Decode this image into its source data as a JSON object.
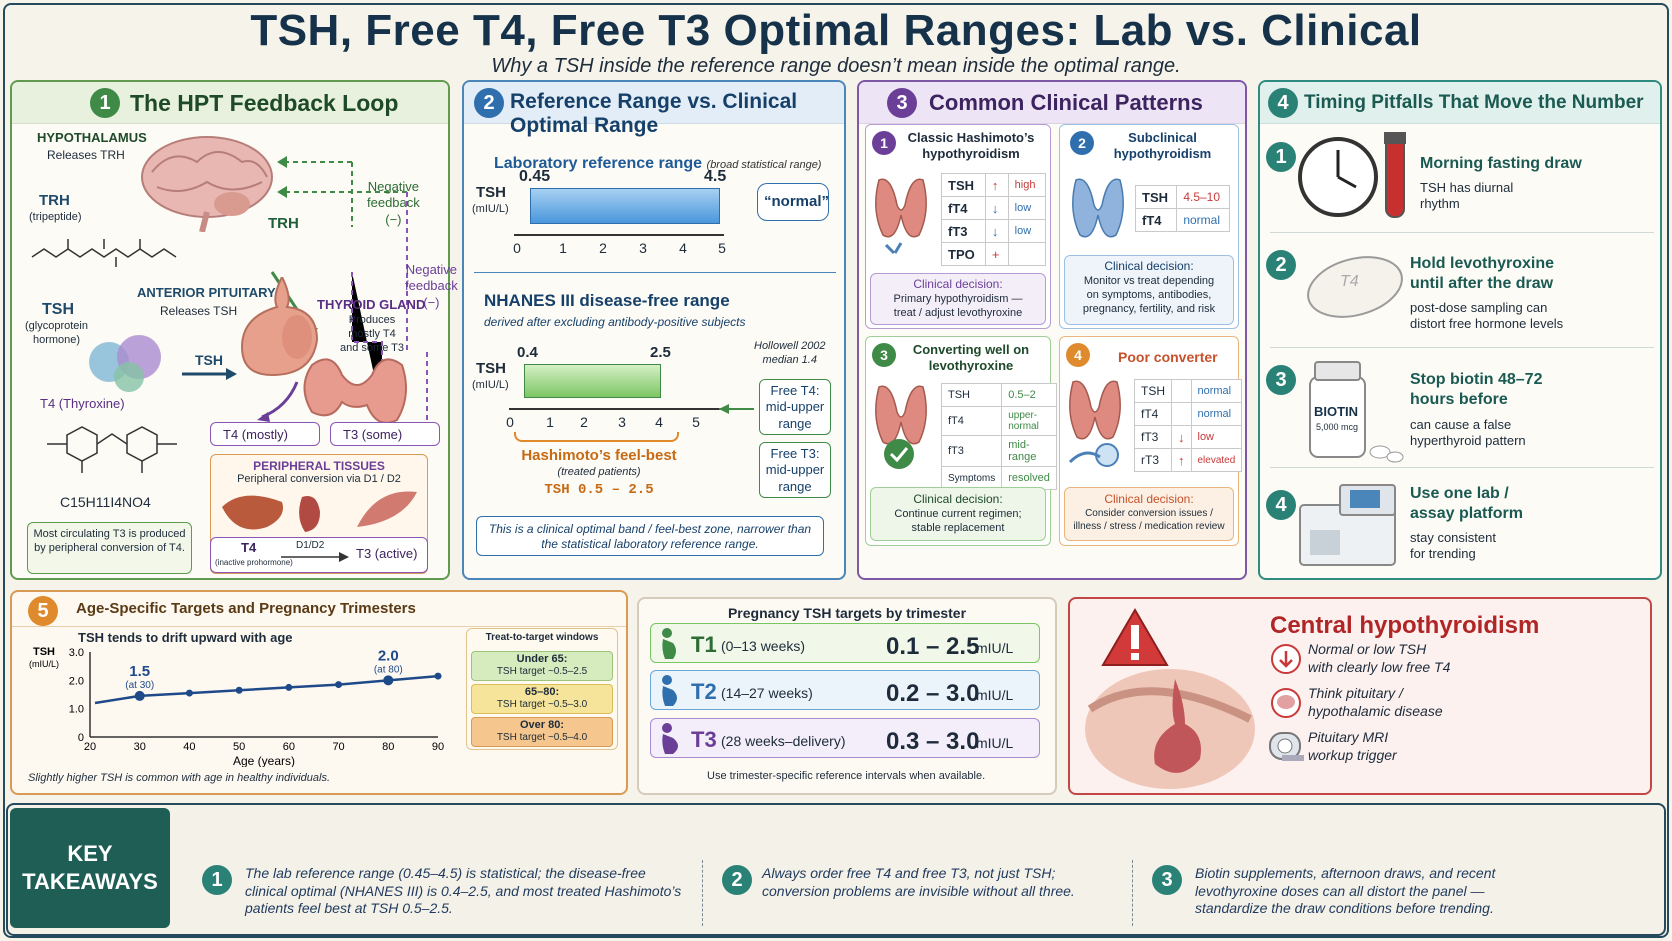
{
  "header": {
    "title": "TSH, Free T4, Free T3 Optimal Ranges: Lab vs. Clinical",
    "subtitle": "Why a TSH inside the reference range doesn’t mean inside the optimal range."
  },
  "colors": {
    "green": "#3f8a46",
    "blue": "#2f6fae",
    "purple": "#6b3f98",
    "teal": "#2a8277",
    "orange": "#e08a2e",
    "red": "#c83a3a",
    "navy": "#16324a"
  },
  "p1": {
    "num": "1",
    "title": "The HPT Feedback Loop",
    "hypothalamus": "HYPOTHALAMUS",
    "releases_trh": "Releases TRH",
    "trh": "TRH",
    "trh_sub": "(tripeptide)",
    "trh_arrow": "TRH",
    "neg_fb1": "Negative\nfeedback\n(−)",
    "neg_fb2": "Negative\nfeedback\n(−)",
    "ant_pit": "ANTERIOR PITUITARY",
    "releases_tsh": "Releases TSH",
    "tsh": "TSH",
    "tsh_sub": "(glycoprotein\nhormone)",
    "tsh_arrow": "TSH",
    "thyroid": "THYROID GLAND",
    "thyroid_note": "Produces\nmostly T4\nand some T3",
    "t4_thyroxine": "T4 (Thyroxine)",
    "formula": "C15H11I4NO4",
    "t4_mostly": "T4 (mostly)",
    "t3_some": "T3 (some)",
    "periph_title": "PERIPHERAL TISSUES",
    "periph_sub": "Peripheral conversion via D1 / D2",
    "note": "Most circulating T3 is produced by peripheral conversion of T4.",
    "conv_t4": "T4",
    "conv_t4_sub": "(inactive prohormone)",
    "conv_d": "D1/D2",
    "conv_t3": "T3 (active)"
  },
  "p2": {
    "num": "2",
    "title": "Reference Range vs. Clinical Optimal Range",
    "lab_title": "Laboratory reference range",
    "lab_sub": "(broad statistical range)",
    "tsh_label": "TSH",
    "unit": "(mIU/L)",
    "lab_low": "0.45",
    "lab_high": "4.5",
    "normal": "“normal”",
    "nhanes_title": "NHANES III disease-free range",
    "nhanes_sub": "derived after excluding antibody-positive subjects",
    "nh_low": "0.4",
    "nh_high": "2.5",
    "hollowell": "Hollowell 2002",
    "median": "median 1.4",
    "ft4_box": "Free T4:\nmid-upper\nrange",
    "ft3_box": "Free T3:\nmid-upper\nrange",
    "hashi": "Hashimoto’s feel-best",
    "hashi_sub": "(treated patients)",
    "hashi_range": "TSH 0.5 – 2.5",
    "footnote": "This is a clinical optimal band / feel-best zone, narrower than the statistical laboratory reference range.",
    "ticks": [
      "0",
      "1",
      "2",
      "3",
      "4",
      "5"
    ]
  },
  "p3": {
    "num": "3",
    "title": "Common Clinical Patterns",
    "decision_label": "Clinical decision:",
    "c1": {
      "num": "1",
      "title": "Classic Hashimoto’s\nhypothyroidism",
      "rows": [
        [
          "TSH",
          "↑",
          "high"
        ],
        [
          "fT4",
          "↓",
          "low"
        ],
        [
          "fT3",
          "↓",
          "low"
        ],
        [
          "TPO",
          "+",
          ""
        ]
      ],
      "decision": "Primary hypothyroidism —\ntreat / adjust levothyroxine"
    },
    "c2": {
      "num": "2",
      "title": "Subclinical\nhypothyroidism",
      "rows": [
        [
          "TSH",
          "4.5–10"
        ],
        [
          "fT4",
          "normal"
        ]
      ],
      "decision": "Monitor vs treat depending\non symptoms, antibodies,\npregnancy, fertility, and risk"
    },
    "c3": {
      "num": "3",
      "title": "Converting well on\nlevothyroxine",
      "rows": [
        [
          "TSH",
          "0.5–2"
        ],
        [
          "fT4",
          "upper-normal"
        ],
        [
          "fT3",
          "mid-range"
        ],
        [
          "Symptoms",
          "resolved"
        ]
      ],
      "decision": "Continue current regimen;\nstable replacement"
    },
    "c4": {
      "num": "4",
      "title": "Poor converter",
      "rows": [
        [
          "TSH",
          "",
          "normal"
        ],
        [
          "fT4",
          "",
          "normal"
        ],
        [
          "fT3",
          "↓",
          "low"
        ],
        [
          "rT3",
          "↑",
          "elevated"
        ]
      ],
      "decision": "Consider conversion issues /\nillness / stress / medication review"
    }
  },
  "p4": {
    "num": "4",
    "title": "Timing Pitfalls That Move the Number",
    "items": [
      {
        "num": "1",
        "title": "Morning fasting draw",
        "sub": "TSH has diurnal\nrhythm"
      },
      {
        "num": "2",
        "title": "Hold levothyroxine\nuntil after the draw",
        "sub": "post-dose sampling can\ndistort free hormone levels"
      },
      {
        "num": "3",
        "title": "Stop biotin 48–72\nhours before",
        "sub": "can cause a false\nhyperthyroid pattern"
      },
      {
        "num": "4",
        "title": "Use one lab /\nassay platform",
        "sub": "stay consistent\nfor trending"
      }
    ],
    "pill_label": "T4",
    "biotin_label": "BIOTIN",
    "biotin_dose": "5,000 mcg"
  },
  "p5": {
    "num": "5",
    "title": "Age-Specific Targets and Pregnancy Trimesters",
    "chart_title": "TSH tends to drift upward with age",
    "footnote": "Slightly higher TSH is common with age in healthy individuals.",
    "windows_title": "Treat-to-target windows",
    "windows": [
      {
        "label": "Under 65:",
        "range": "TSH target ~0.5–2.5"
      },
      {
        "label": "65–80:",
        "range": "TSH target ~0.5–3.0"
      },
      {
        "label": "Over 80:",
        "range": "TSH target ~0.5–4.0"
      }
    ],
    "callouts": [
      {
        "value": "1.5",
        "note": "(at 30)"
      },
      {
        "value": "2.0",
        "note": "(at 80)"
      }
    ]
  },
  "chart_data": {
    "type": "line",
    "title": "TSH tends to drift upward with age",
    "xlabel": "Age (years)",
    "ylabel": "TSH",
    "yunit": "(mIU/L)",
    "x": [
      21,
      30,
      40,
      50,
      60,
      70,
      80,
      90
    ],
    "series": [
      {
        "values": [
          1.2,
          1.45,
          1.55,
          1.65,
          1.75,
          1.85,
          2.0,
          2.15
        ]
      }
    ],
    "xlim": [
      20,
      90
    ],
    "ylim": [
      0,
      3.0
    ],
    "xticks": [
      "20",
      "30",
      "40",
      "50",
      "60",
      "70",
      "80",
      "90"
    ],
    "yticks": [
      "0",
      "1.0",
      "2.0",
      "3.0"
    ],
    "grid": false
  },
  "preg": {
    "title": "Pregnancy TSH targets by trimester",
    "unit": "mIU/L",
    "footnote": "Use trimester-specific reference intervals when available.",
    "rows": [
      {
        "t": "T1",
        "weeks": "(0–13 weeks)",
        "range": "0.1 – 2.5"
      },
      {
        "t": "T2",
        "weeks": "(14–27 weeks)",
        "range": "0.2 – 3.0"
      },
      {
        "t": "T3",
        "weeks": "(28 weeks–delivery)",
        "range": "0.3 – 3.0"
      }
    ]
  },
  "central": {
    "title": "Central hypothyroidism",
    "items": [
      "Normal or low TSH\nwith clearly low free T4",
      "Think pituitary /\nhypothalamic disease",
      "Pituitary MRI\nworkup trigger"
    ]
  },
  "takeaways": {
    "label": "KEY\nTAKEAWAYS",
    "items": [
      {
        "num": "1",
        "text": "The lab reference range (0.45–4.5) is statistical; the disease-free clinical optimal (NHANES III) is 0.4–2.5, and most treated Hashimoto’s patients feel best at TSH 0.5–2.5."
      },
      {
        "num": "2",
        "text": "Always order free T4 and free T3, not just TSH; conversion problems are invisible without all three."
      },
      {
        "num": "3",
        "text": "Biotin supplements, afternoon draws, and recent levothyroxine doses can all distort the panel — standardize the draw conditions before trending."
      }
    ]
  }
}
